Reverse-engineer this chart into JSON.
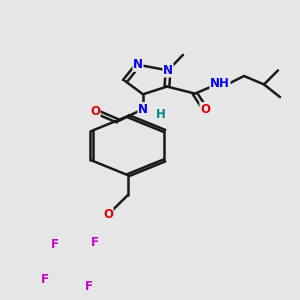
{
  "bg_color": "#e6e6e6",
  "bond_color": "#1a1a1a",
  "bond_width": 1.8,
  "dbo": 0.008,
  "atom_colors": {
    "N": "#0000ee",
    "O": "#dd0000",
    "F": "#cc00cc",
    "H": "#008888",
    "C": "#1a1a1a"
  },
  "fs": 8.5,
  "fsm": 7.5
}
